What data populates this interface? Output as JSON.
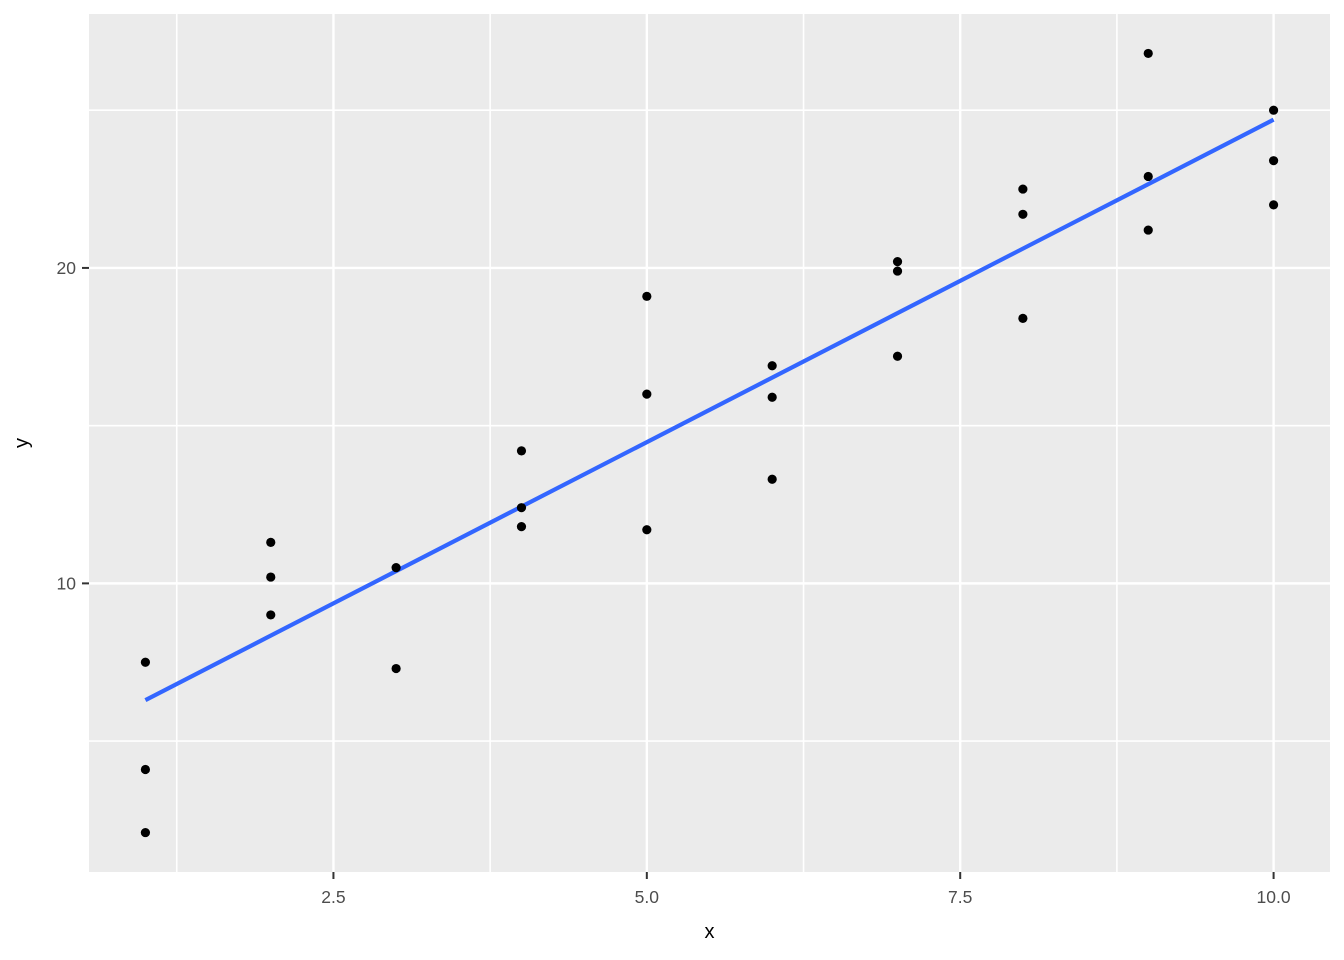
{
  "chart_data": {
    "type": "scatter",
    "title": "",
    "xlabel": "x",
    "ylabel": "y",
    "x_ticks": [
      {
        "value": 2.5,
        "label": "2.5"
      },
      {
        "value": 5.0,
        "label": "5.0"
      },
      {
        "value": 7.5,
        "label": "7.5"
      },
      {
        "value": 10.0,
        "label": "10.0"
      }
    ],
    "y_ticks": [
      {
        "value": 10,
        "label": "10"
      },
      {
        "value": 20,
        "label": "20"
      }
    ],
    "x_minor_gridlines": [
      1.25,
      3.75,
      6.25,
      8.75
    ],
    "y_minor_gridlines": [
      5,
      15,
      25
    ],
    "xlim": [
      0.55,
      10.45
    ],
    "ylim": [
      0.85,
      28.05
    ],
    "grid": "on",
    "legend": "none",
    "points": [
      [
        1,
        7.5
      ],
      [
        1,
        4.1
      ],
      [
        1,
        2.1
      ],
      [
        2,
        11.3
      ],
      [
        2,
        10.2
      ],
      [
        2,
        9.0
      ],
      [
        3,
        10.5
      ],
      [
        3,
        7.3
      ],
      [
        4,
        14.2
      ],
      [
        4,
        12.4
      ],
      [
        4,
        11.8
      ],
      [
        5,
        19.1
      ],
      [
        5,
        16.0
      ],
      [
        5,
        11.7
      ],
      [
        6,
        16.9
      ],
      [
        6,
        15.9
      ],
      [
        6,
        13.3
      ],
      [
        7,
        20.2
      ],
      [
        7,
        19.9
      ],
      [
        7,
        17.2
      ],
      [
        8,
        22.5
      ],
      [
        8,
        21.7
      ],
      [
        8,
        18.4
      ],
      [
        9,
        26.8
      ],
      [
        9,
        22.9
      ],
      [
        9,
        21.2
      ],
      [
        10,
        25.0
      ],
      [
        10,
        23.4
      ],
      [
        10,
        22.0
      ]
    ],
    "trend_line": {
      "x1": 1,
      "y1": 6.3,
      "x2": 10,
      "y2": 24.7
    },
    "colors": {
      "background": "#FFFFFF",
      "panel_background": "#EBEBEB",
      "gridline": "#FFFFFF",
      "point": "#000000",
      "trend_line": "#3366FF",
      "axis_text": "#4D4D4D",
      "tick_mark": "#333333",
      "axis_title": "#000000"
    }
  }
}
